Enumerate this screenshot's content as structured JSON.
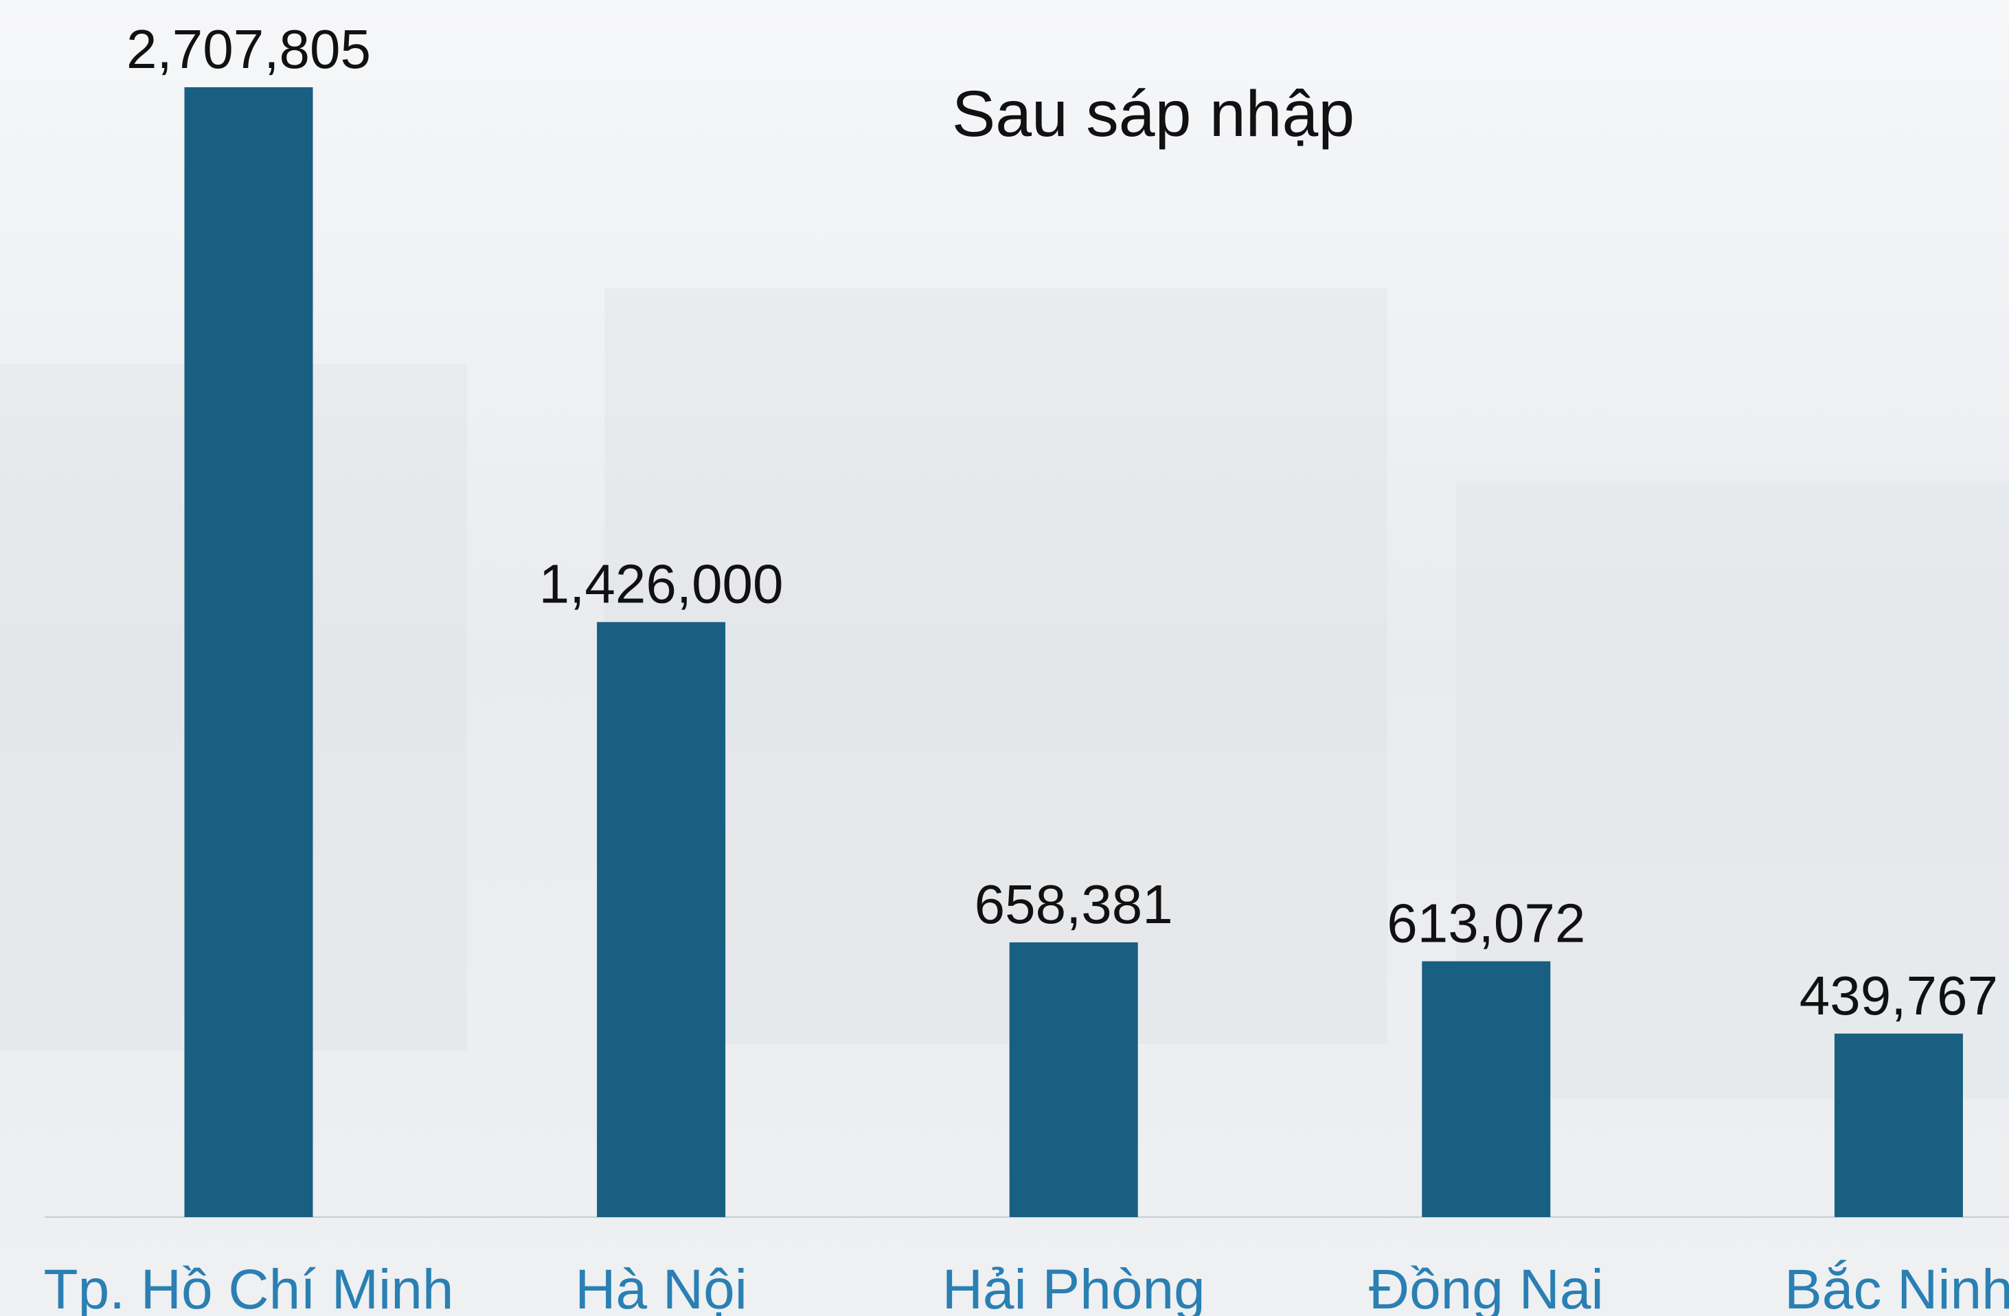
{
  "chart_data": {
    "type": "bar",
    "title": "Sau sáp nhập",
    "categories": [
      "Tp. Hồ Chí Minh",
      "Hà Nội",
      "Hải Phòng",
      "Đồng Nai",
      "Bắc Ninh"
    ],
    "values": [
      2707805,
      1426000,
      658381,
      613072,
      439767
    ],
    "value_labels": [
      "2,707,805",
      "1,426,000",
      "658,381",
      "613,072",
      "439,767"
    ],
    "color": "#185f82"
  }
}
